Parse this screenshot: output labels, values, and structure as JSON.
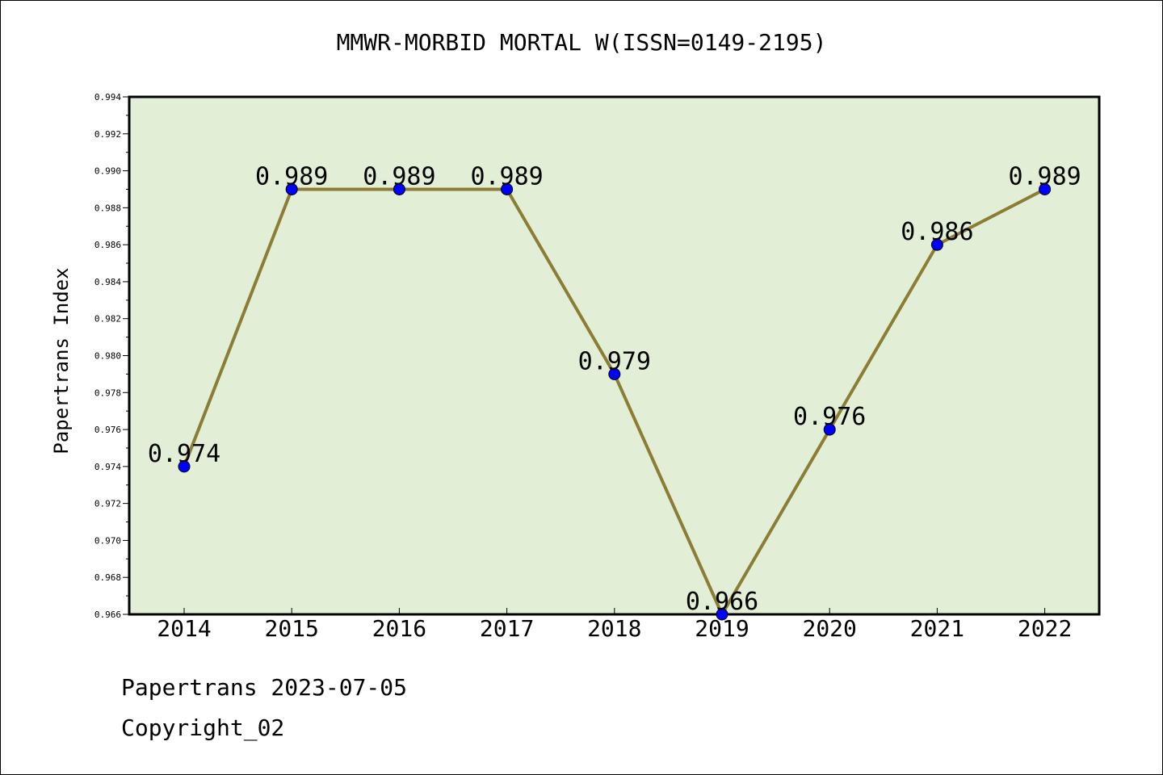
{
  "chart_data": {
    "type": "line",
    "title": "MMWR-MORBID MORTAL W(ISSN=0149-2195)",
    "xlabel": "",
    "ylabel": "Papertrans Index",
    "x": [
      "2014",
      "2015",
      "2016",
      "2017",
      "2018",
      "2019",
      "2020",
      "2021",
      "2022"
    ],
    "series": [
      {
        "values": [
          0.974,
          0.989,
          0.989,
          0.989,
          0.979,
          0.966,
          0.976,
          0.986,
          0.989
        ],
        "labels": [
          "0.974",
          "0.989",
          "0.989",
          "0.989",
          "0.979",
          "0.966",
          "0.976",
          "0.986",
          "0.989"
        ]
      }
    ],
    "ylim": [
      0.966,
      0.994
    ],
    "yticks": [
      "0.966",
      "0.968",
      "0.970",
      "0.972",
      "0.974",
      "0.976",
      "0.978",
      "0.980",
      "0.982",
      "0.984",
      "0.986",
      "0.988",
      "0.990",
      "0.992",
      "0.994"
    ],
    "grid": false,
    "colors": {
      "plot_background": "#e2efd6",
      "line": "#8b7d35",
      "marker": "#0000ff"
    }
  },
  "footer": {
    "line1": "Papertrans 2023-07-05",
    "line2": "Copyright_02"
  }
}
